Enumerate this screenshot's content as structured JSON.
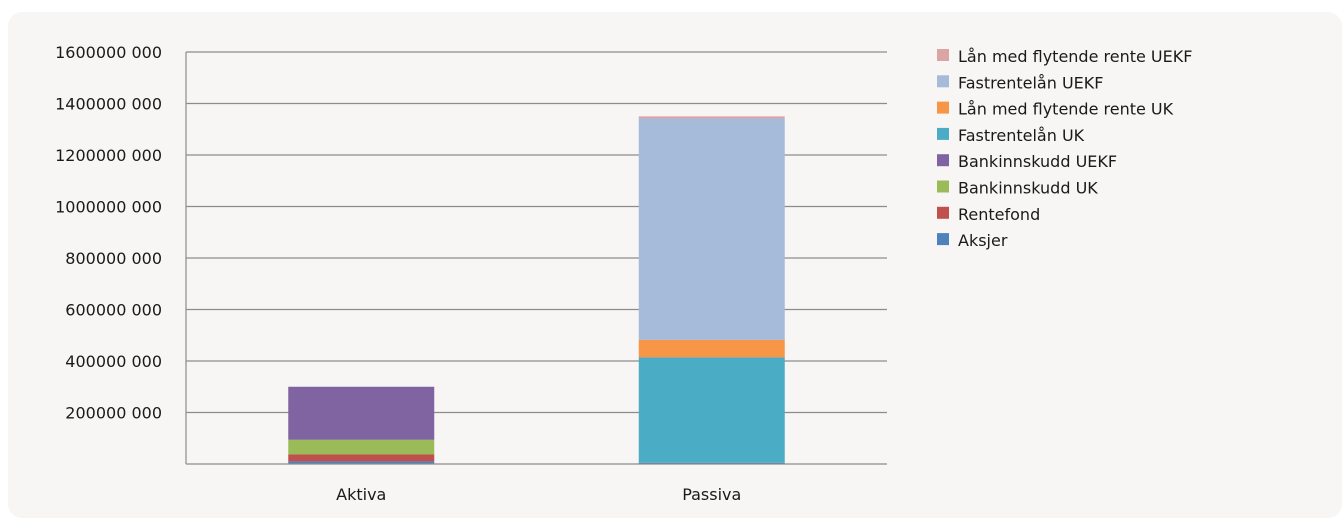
{
  "chart_data": {
    "type": "bar",
    "stacked": true,
    "categories": [
      "Aktiva",
      "Passiva"
    ],
    "y_ticks": [
      "200000 000",
      "400000 000",
      "600000 000",
      "800000 000",
      "1000000 000",
      "1200000 000",
      "1400000 000",
      "1600000 000"
    ],
    "ylim": [
      0,
      1600000000
    ],
    "grid": true,
    "legend_position": "right",
    "series": [
      {
        "name": "Aksjer",
        "color": "#4f81bd",
        "values": [
          10000000,
          5000000
        ]
      },
      {
        "name": "Rentefond",
        "color": "#c0504d",
        "values": [
          27000000,
          0
        ]
      },
      {
        "name": "Bankinnskudd UK",
        "color": "#9bbb59",
        "values": [
          57000000,
          0
        ]
      },
      {
        "name": "Bankinnskudd UEKF",
        "color": "#8064a2",
        "values": [
          206000000,
          0
        ]
      },
      {
        "name": "Fastrentelån UK",
        "color": "#4bacc6",
        "values": [
          0,
          409000000
        ]
      },
      {
        "name": "Lån med flytende rente UK",
        "color": "#f79646",
        "values": [
          0,
          68000000
        ]
      },
      {
        "name": "Fastrentelån UEKF",
        "color": "#a5bbd9",
        "values": [
          0,
          860000000
        ]
      },
      {
        "name": "Lån med flytende rente UEKF",
        "color": "#dba5a5",
        "values": [
          0,
          8000000
        ]
      }
    ]
  }
}
